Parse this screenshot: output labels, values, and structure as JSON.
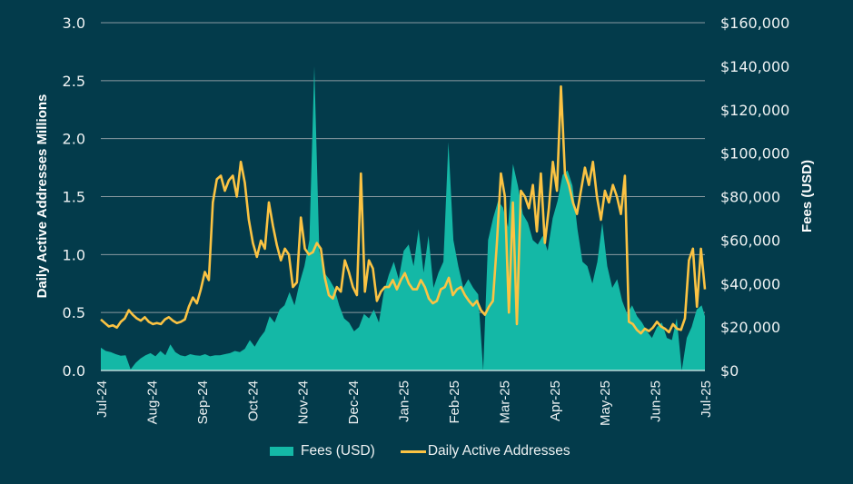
{
  "chart_data": {
    "type": "area+line (dual axis)",
    "title": "",
    "colors": {
      "background": "#033b4b",
      "fees": "#14b8a6",
      "daa": "#fbc343",
      "grid": "#8a9aa0",
      "text": "#eef2f3"
    },
    "left_axis": {
      "label": "Daily Active Addresses Millions",
      "range": [
        0,
        3.0
      ],
      "ticks": [
        "0.0",
        "0.5",
        "1.0",
        "1.5",
        "2.0",
        "2.5",
        "3.0"
      ]
    },
    "right_axis": {
      "label": "Fees (USD)",
      "range": [
        0,
        160000
      ],
      "ticks": [
        "$0",
        "$20,000",
        "$40,000",
        "$60,000",
        "$80,000",
        "$100,000",
        "$120,000",
        "$140,000",
        "$160,000"
      ]
    },
    "x_axis": {
      "ticks": [
        "Jul-24",
        "Aug-24",
        "Sep-24",
        "Oct-24",
        "Nov-24",
        "Dec-24",
        "Jan-25",
        "Feb-25",
        "Mar-25",
        "Apr-25",
        "May-25",
        "Jun-25",
        "Jul-25"
      ],
      "range_days": [
        0,
        365
      ]
    },
    "grid": "horizontal",
    "legend": {
      "placement": "bottom-center",
      "items": [
        "Fees (USD)",
        "Daily Active Addresses"
      ]
    },
    "series": [
      {
        "name": "Fees (USD)",
        "axis": "right",
        "type": "area",
        "day_step": 3,
        "values": [
          10500,
          9000,
          8500,
          7500,
          6800,
          7000,
          500,
          3500,
          5500,
          7000,
          8000,
          6500,
          9000,
          7000,
          12000,
          8500,
          7000,
          6500,
          7500,
          7000,
          6800,
          7500,
          6500,
          7000,
          7000,
          7500,
          8000,
          9000,
          8500,
          10000,
          14000,
          11000,
          15000,
          18000,
          25000,
          22000,
          28000,
          30000,
          36000,
          30000,
          40000,
          48000,
          60000,
          140000,
          55000,
          45000,
          42000,
          38000,
          30000,
          24000,
          22000,
          18000,
          20000,
          26000,
          24000,
          28000,
          22000,
          36000,
          44000,
          50000,
          42000,
          55000,
          58000,
          48000,
          65000,
          45000,
          62000,
          38000,
          45000,
          50000,
          105000,
          60000,
          48000,
          38000,
          42000,
          38000,
          35000,
          0,
          60000,
          70000,
          78000,
          75000,
          66000,
          95000,
          85000,
          72000,
          68000,
          60000,
          58000,
          62000,
          55000,
          70000,
          78000,
          90000,
          92000,
          85000,
          65000,
          50000,
          48000,
          40000,
          50000,
          68000,
          48000,
          38000,
          42000,
          32000,
          26000,
          30000,
          25000,
          22000,
          18000,
          15000,
          20000,
          22000,
          15000,
          14000,
          24000,
          0,
          15000,
          20000,
          28000,
          30000,
          25000,
          25000
        ]
      },
      {
        "name": "Daily Active Addresses",
        "axis": "left",
        "type": "line",
        "color": "#fbc343"
      }
    ]
  },
  "legend": {
    "fees_label": "Fees (USD)",
    "daa_label": "Daily Active Addresses"
  },
  "axes": {
    "left_title": "Daily Active Addresses Millions",
    "right_title": "Fees (USD)"
  }
}
